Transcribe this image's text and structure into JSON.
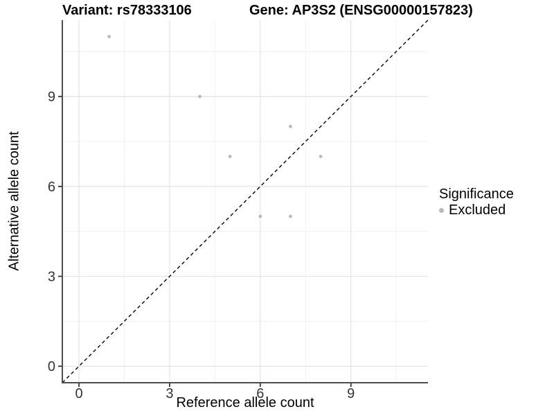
{
  "chart_data": {
    "type": "scatter",
    "title_left": "Variant: rs78333106",
    "title_right": "Gene: AP3S2 (ENSG00000157823)",
    "xlabel": "Reference allele count",
    "ylabel": "Alternative allele count",
    "xticks": [
      0,
      3,
      6,
      9
    ],
    "yticks": [
      0,
      3,
      6,
      9
    ],
    "minor_gridlines": [
      1.5,
      4.5,
      7.5,
      10.5
    ],
    "xlim": [
      -0.55,
      11.55
    ],
    "ylim": [
      -0.55,
      11.55
    ],
    "grid": true,
    "legend_position": "right",
    "identity_line": {
      "equation": "y = x",
      "style": "dashed",
      "color": "#000000"
    },
    "series": [
      {
        "name": "Excluded",
        "color": "#b9b9b9",
        "points": [
          {
            "x": 1,
            "y": 11
          },
          {
            "x": 4,
            "y": 9
          },
          {
            "x": 5,
            "y": 7
          },
          {
            "x": 6,
            "y": 5
          },
          {
            "x": 7,
            "y": 5
          },
          {
            "x": 7,
            "y": 8
          },
          {
            "x": 8,
            "y": 7
          }
        ]
      }
    ],
    "legend": {
      "title": "Significance",
      "items": [
        {
          "label": "Excluded",
          "color": "#b9b9b9",
          "marker": "circle"
        }
      ]
    },
    "colors": {
      "axis_line": "#4d4d4d",
      "tick_mark": "#333333",
      "tick_label": "#333333",
      "major_grid": "#e3e3e3",
      "minor_grid": "#f0f0f0",
      "background": "#ffffff"
    }
  }
}
